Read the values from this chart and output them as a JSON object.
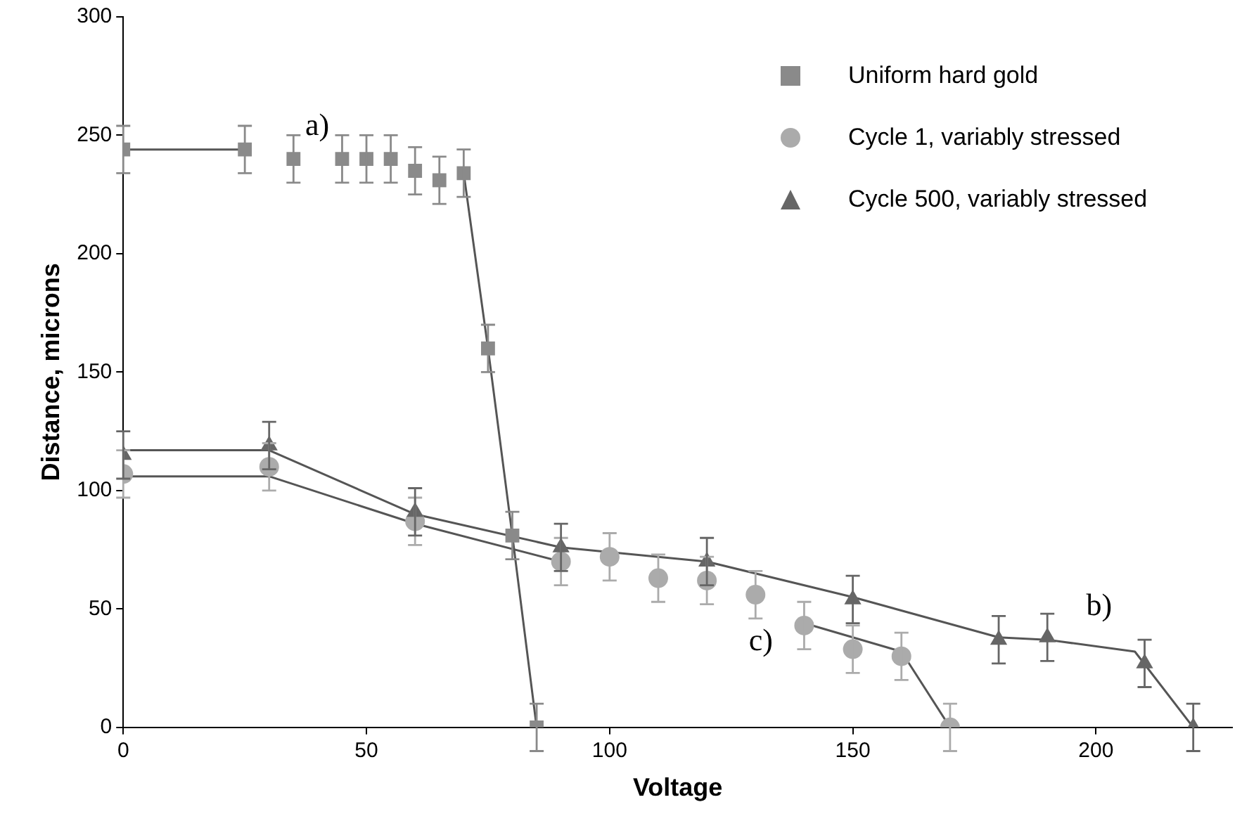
{
  "chart_data": {
    "type": "scatter",
    "xlabel": "Voltage",
    "ylabel": "Distance, microns",
    "xlim": [
      0,
      228
    ],
    "xticks": [
      0,
      50,
      100,
      150,
      200
    ],
    "ylim": [
      0,
      300
    ],
    "yticks": [
      0,
      50,
      100,
      150,
      200,
      250,
      300
    ],
    "grid": false,
    "legend": "top right",
    "series": [
      {
        "name": "Uniform hard gold",
        "marker": "square",
        "color": "#8a8a8a",
        "x": [
          0,
          25,
          35,
          45,
          50,
          55,
          60,
          65,
          70,
          75,
          80,
          85
        ],
        "values": [
          244,
          244,
          240,
          240,
          240,
          240,
          235,
          231,
          234,
          160,
          81,
          0
        ],
        "errors": [
          10,
          10,
          10,
          10,
          10,
          10,
          10,
          10,
          10,
          10,
          10,
          10
        ]
      },
      {
        "name": "Cycle 1, variably stressed",
        "marker": "circle",
        "color": "#ababab",
        "x": [
          0,
          30,
          60,
          90,
          100,
          110,
          120,
          130,
          140,
          150,
          160,
          170
        ],
        "values": [
          107,
          110,
          87,
          70,
          72,
          63,
          62,
          56,
          43,
          33,
          30,
          0
        ],
        "errors": [
          10,
          10,
          10,
          10,
          10,
          10,
          10,
          10,
          10,
          10,
          10,
          10
        ]
      },
      {
        "name": "Cycle 500, variably stressed",
        "marker": "triangle",
        "color": "#666666",
        "x": [
          0,
          30,
          60,
          90,
          120,
          150,
          180,
          190,
          210,
          220
        ],
        "values": [
          115,
          119,
          91,
          76,
          70,
          54,
          37,
          38,
          27,
          0
        ],
        "errors": [
          10,
          10,
          10,
          10,
          10,
          10,
          10,
          10,
          10,
          10
        ]
      },
      {
        "type": "line",
        "marker": "none",
        "color": "#555555",
        "x": [
          0,
          25,
          45,
          70,
          75,
          80,
          85
        ],
        "values": [
          244,
          244,
          null,
          234,
          160,
          81,
          0
        ]
      },
      {
        "type": "line",
        "marker": "none",
        "color": "#555555",
        "x": [
          0,
          30,
          60,
          90,
          115,
          140,
          160,
          170
        ],
        "values": [
          106,
          106,
          86,
          70,
          null,
          44,
          32,
          0
        ]
      },
      {
        "type": "line",
        "marker": "none",
        "color": "#555555",
        "x": [
          0,
          30,
          60,
          90,
          120,
          150,
          180,
          190,
          208,
          220
        ],
        "values": [
          117,
          117,
          90,
          76,
          70,
          55,
          38,
          37,
          32,
          0
        ]
      }
    ],
    "annotations": [
      "a)",
      "b)",
      "c)"
    ]
  }
}
